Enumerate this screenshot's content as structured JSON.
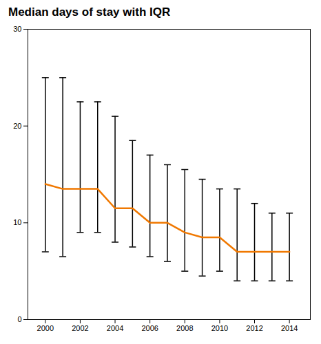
{
  "chart_data": {
    "type": "line",
    "title": "Median days of stay with IQR",
    "x": [
      2000,
      2001,
      2002,
      2003,
      2004,
      2005,
      2006,
      2007,
      2008,
      2009,
      2010,
      2011,
      2012,
      2013,
      2014
    ],
    "values": [
      14.0,
      13.5,
      13.5,
      13.5,
      11.5,
      11.5,
      10.0,
      10.0,
      9.0,
      8.5,
      8.5,
      7.0,
      7.0,
      7.0,
      7.0
    ],
    "iqr_low": [
      7.0,
      6.5,
      9.0,
      9.0,
      8.0,
      7.5,
      6.5,
      6.0,
      5.0,
      4.5,
      5.0,
      4.0,
      4.0,
      4.0,
      4.0
    ],
    "iqr_high": [
      25.0,
      25.0,
      22.5,
      22.5,
      21.0,
      18.5,
      17.0,
      16.0,
      15.5,
      14.5,
      13.5,
      13.5,
      12.0,
      11.0,
      11.0
    ],
    "color": "#F07800",
    "xlim": [
      1999.0,
      2015.2
    ],
    "xticks": [
      2000,
      2002,
      2004,
      2006,
      2008,
      2010,
      2012,
      2014
    ],
    "ylim": [
      0,
      30
    ],
    "yticks": [
      0,
      10,
      20,
      30
    ],
    "grid": false
  }
}
